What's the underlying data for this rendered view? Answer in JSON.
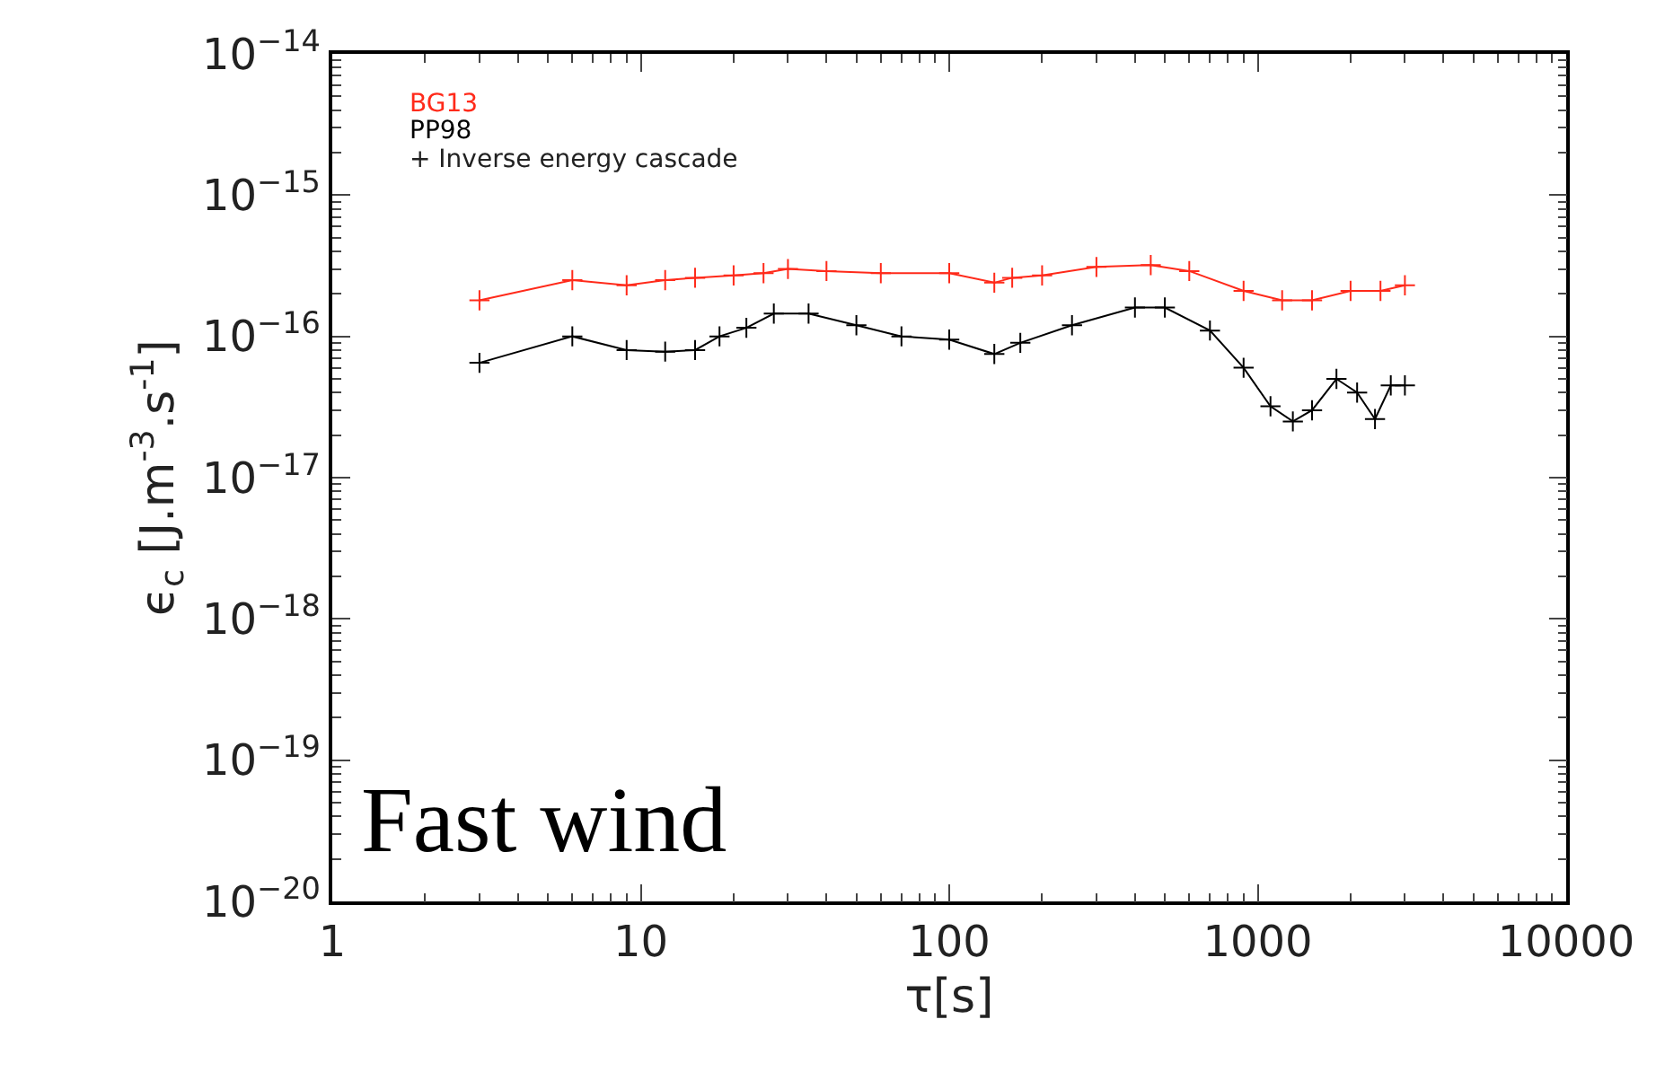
{
  "chart_data": {
    "type": "line",
    "xlabel": "τ[s]",
    "ylabel": "ϵ$_{c}$ [J.m$^{-3}$.s$^{-1}$]",
    "log": "xy",
    "legend": false,
    "marker": "cross",
    "xlim": [
      1,
      10000
    ],
    "xticks": [
      1,
      10,
      100,
      1000,
      10000
    ],
    "ylim": [
      1e-20,
      1e-14
    ],
    "yticks": [
      {
        "value": 1e-14,
        "label": "10$^{−14}$"
      },
      {
        "value": 1e-15,
        "label": "10$^{−15}$"
      },
      {
        "value": 1e-16,
        "label": "10$^{−16}$"
      },
      {
        "value": 1e-17,
        "label": "10$^{−17}$"
      },
      {
        "value": 1e-18,
        "label": "10$^{−18}$"
      },
      {
        "value": 1e-19,
        "label": "10$^{−19}$"
      },
      {
        "value": 1e-20,
        "label": "10$^{−20}$"
      }
    ],
    "series": [
      {
        "name": "BG13",
        "color": "#ff2a1a",
        "x": [
          3,
          6,
          9,
          12,
          15,
          20,
          25,
          30,
          40,
          60,
          100,
          140,
          160,
          200,
          300,
          450,
          600,
          900,
          1200,
          1500,
          2000,
          2500,
          3000
        ],
        "values": [
          1.8e-16,
          2.5e-16,
          2.3e-16,
          2.5e-16,
          2.6e-16,
          2.7e-16,
          2.8e-16,
          3e-16,
          2.9e-16,
          2.8e-16,
          2.8e-16,
          2.4e-16,
          2.6e-16,
          2.7e-16,
          3.1e-16,
          3.2e-16,
          2.9e-16,
          2.1e-16,
          1.8e-16,
          1.8e-16,
          2.1e-16,
          2.1e-16,
          2.3e-16
        ]
      },
      {
        "name": "PP98",
        "color": "#000000",
        "x": [
          3,
          6,
          9,
          12,
          15,
          18,
          22,
          27,
          35,
          50,
          70,
          100,
          140,
          170,
          250,
          400,
          500,
          700,
          900,
          1100,
          1300,
          1500,
          1800,
          2100,
          2400,
          2700,
          3000
        ],
        "values": [
          6.5e-17,
          1e-16,
          8e-17,
          7.8e-17,
          8e-17,
          1e-16,
          1.15e-16,
          1.45e-16,
          1.45e-16,
          1.2e-16,
          1e-16,
          9.5e-17,
          7.5e-17,
          9e-17,
          1.2e-16,
          1.6e-16,
          1.6e-16,
          1.1e-16,
          6e-17,
          3.2e-17,
          2.5e-17,
          3e-17,
          5e-17,
          4e-17,
          2.6e-17,
          4.5e-17,
          4.5e-17
        ]
      }
    ],
    "annotations": [
      "+ Inverse energy cascade",
      "Fast wind"
    ]
  }
}
